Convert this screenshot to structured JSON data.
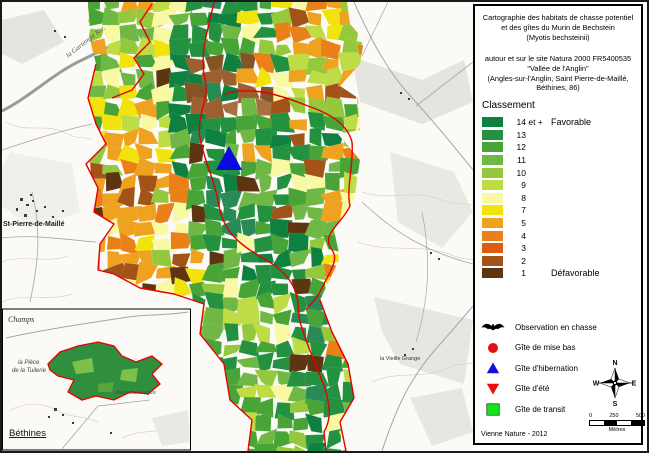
{
  "panel": {
    "title": "Cartographie des habitats de chasse potentiel\net des gîtes du Murin de Bechstein\n(Myotis bechsteinii)",
    "subtitle": "autour et sur le site Natura 2000 FR5400535\n\"Vallée de l'Anglin\"\n(Angles-sur-l'Anglin, Saint Pierre-de-Maillé,\nBéthines, 86)",
    "classement": {
      "heading": "Classement",
      "classes": [
        {
          "num": "14",
          "suffix": " et +",
          "color": "#0e8040",
          "side_label": "Favorable"
        },
        {
          "num": "13",
          "suffix": "",
          "color": "#23913f",
          "side_label": ""
        },
        {
          "num": "12",
          "suffix": "",
          "color": "#49a437",
          "side_label": ""
        },
        {
          "num": "11",
          "suffix": "",
          "color": "#70b845",
          "side_label": ""
        },
        {
          "num": "10",
          "suffix": "",
          "color": "#95c93d",
          "side_label": ""
        },
        {
          "num": "9",
          "suffix": "",
          "color": "#bedc44",
          "side_label": ""
        },
        {
          "num": "8",
          "suffix": "",
          "color": "#f9f9a4",
          "side_label": ""
        },
        {
          "num": "7",
          "suffix": "",
          "color": "#f2e30c",
          "side_label": ""
        },
        {
          "num": "5",
          "suffix": "",
          "color": "#efa21f",
          "side_label": ""
        },
        {
          "num": "4",
          "suffix": "",
          "color": "#e98018",
          "side_label": ""
        },
        {
          "num": "3",
          "suffix": "",
          "color": "#de5b14",
          "side_label": ""
        },
        {
          "num": "2",
          "suffix": "",
          "color": "#a35317",
          "side_label": ""
        },
        {
          "num": "1",
          "suffix": "",
          "color": "#5d3511",
          "side_label": "Défavorable"
        }
      ]
    },
    "symbols": [
      {
        "type": "bat",
        "label": "Observation en chasse",
        "color": "#000000"
      },
      {
        "type": "circle",
        "label": "Gîte de mise bas",
        "color": "#e60e0e"
      },
      {
        "type": "triangle-up",
        "label": "Gîte d'hibernation",
        "color": "#1412d8"
      },
      {
        "type": "triangle-down",
        "label": "Gîte d'été",
        "color": "#e60e0e"
      },
      {
        "type": "square",
        "label": "Gîte de transit",
        "color": "#17e317"
      }
    ],
    "compass": {
      "n": "N",
      "e": "E",
      "s": "S",
      "w": "W"
    },
    "scalebar": {
      "ticks": [
        "0",
        "250",
        "500"
      ],
      "unit": "Mètres"
    },
    "credit": "Vienne Nature - 2012"
  },
  "map": {
    "labels": {
      "river": "la Gartempe Riv.",
      "village_left": "St-Pierre-de-Maillé",
      "champs": "Champs",
      "inset_town": "Béthines",
      "tuilerie_1": "la Pièce",
      "tuilerie_2": "de la Tuilerie",
      "bois": "Bois des Forges",
      "grange": "la Vieille Grange"
    },
    "boundary_color": "#e60000",
    "markers": [
      {
        "type": "gite-hibernation",
        "color": "#0a0ae0"
      }
    ]
  }
}
